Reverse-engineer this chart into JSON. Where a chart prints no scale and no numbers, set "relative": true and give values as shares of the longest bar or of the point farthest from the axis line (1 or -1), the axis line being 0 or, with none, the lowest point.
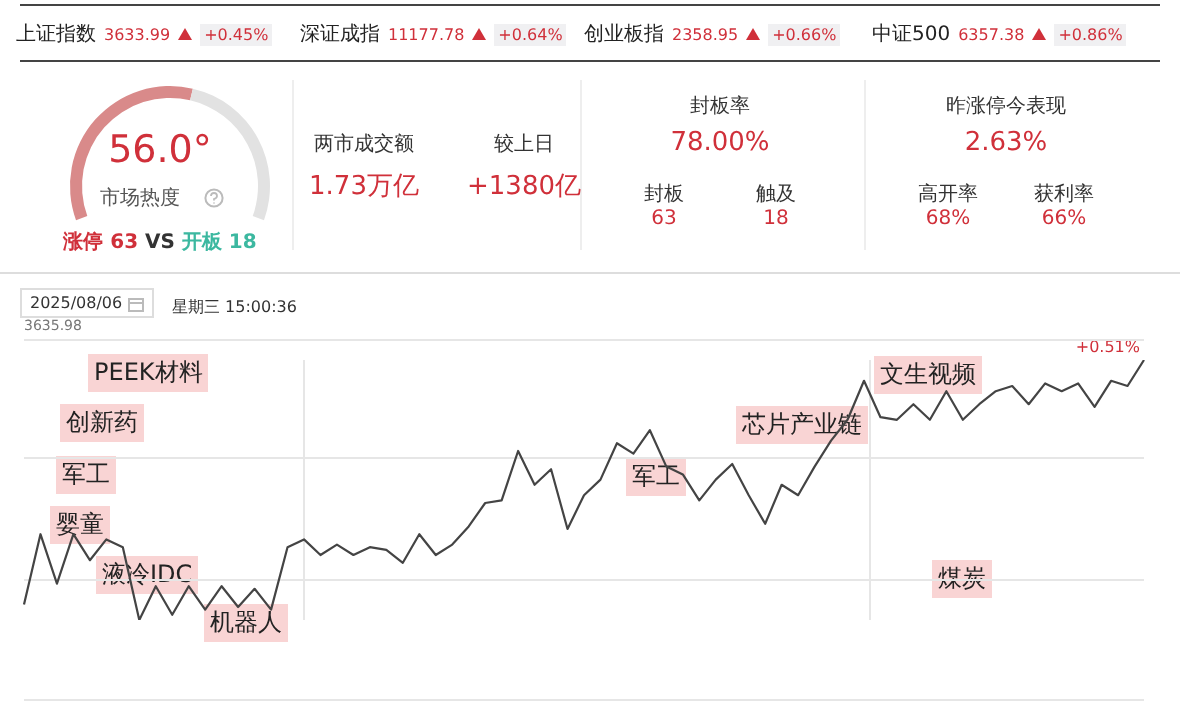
{
  "chart_data": [
    {
      "type": "other",
      "annotations": [
        "上证指数",
        "3633.99",
        "+0.45%",
        "深证成指",
        "11177.78",
        "+0.64%",
        "创业板指",
        "2358.95",
        "+0.66%",
        "中证500",
        "6357.38",
        "+0.86%"
      ]
    },
    {
      "type": "donut",
      "title": "市场热度",
      "categories": [
        null,
        null
      ],
      "values": [
        56,
        44
      ],
      "colors": [
        "#d98a8a",
        "#e2e2e2"
      ],
      "annotations": [
        "56.0°",
        "涨停 63",
        "VS",
        "开板 18"
      ]
    },
    {
      "type": "other",
      "annotations": [
        "两市成交额",
        "较上日",
        "1.73万亿",
        "+1380亿",
        "封板率",
        "78.00%",
        "封板",
        "触及",
        "63",
        "18",
        "昨涨停今表现",
        "2.63%",
        "高开率",
        "获利率",
        "68%",
        "66%"
      ]
    },
    {
      "type": "line",
      "relative": true,
      "color": "#444444",
      "grid": true,
      "marker": "none",
      "categories": [
        null,
        null,
        null,
        null,
        null,
        null,
        null,
        null,
        null,
        null,
        null,
        null,
        null,
        null,
        null,
        null,
        null,
        null,
        null,
        null,
        null,
        null,
        null,
        null,
        null,
        null,
        null,
        null,
        null,
        null,
        null,
        null,
        null,
        null,
        null,
        null,
        null,
        null,
        null,
        null,
        null,
        null,
        null,
        null,
        null,
        null,
        null,
        null,
        null,
        null,
        null,
        null,
        null,
        null,
        null,
        null,
        null,
        null,
        null,
        null,
        null,
        null,
        null,
        null,
        null,
        null,
        null,
        null,
        null
      ],
      "values": [
        0.06,
        0.33,
        0.14,
        0.33,
        0.23,
        0.31,
        0.28,
        0,
        0.13,
        0.02,
        0.13,
        0.04,
        0.13,
        0.05,
        0.12,
        0.04,
        0.28,
        0.31,
        0.25,
        0.29,
        0.25,
        0.28,
        0.27,
        0.22,
        0.33,
        0.25,
        0.29,
        0.36,
        0.45,
        0.46,
        0.65,
        0.52,
        0.58,
        0.35,
        0.48,
        0.54,
        0.68,
        0.64,
        0.73,
        0.59,
        0.56,
        0.46,
        0.54,
        0.6,
        0.48,
        0.37,
        0.52,
        0.48,
        0.59,
        0.69,
        0.77,
        0.92,
        0.78,
        0.77,
        0.83,
        0.77,
        0.88,
        0.77,
        0.83,
        0.88,
        0.9,
        0.83,
        0.91,
        0.88,
        0.91,
        0.82,
        0.92,
        0.9,
        1
      ],
      "annotations": [
        "2025/08/06",
        "星期三 15:00:36",
        "3635.98",
        "+0.51%",
        "PEEK材料",
        "创新药",
        "军工",
        "婴童",
        "液冷IDC",
        "机器人",
        "军工",
        "芯片产业链",
        "文生视频",
        "煤炭"
      ]
    }
  ]
}
